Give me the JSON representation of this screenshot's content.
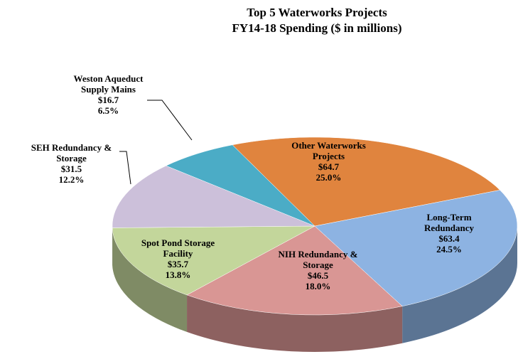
{
  "chart_data": {
    "type": "pie3d",
    "title": "Top 5 Waterworks Projects",
    "subtitle": "FY14-18 Spending ($ in millions)",
    "categories": [
      "Other Waterworks Projects",
      "Long-Term Redundancy",
      "NIH Redundancy & Storage",
      "Spot Pond Storage Facility",
      "SEH Redundancy & Storage",
      "Weston Aqueduct Supply Mains"
    ],
    "values": [
      64.7,
      63.4,
      46.5,
      35.7,
      31.5,
      16.7
    ],
    "value_labels": [
      "$64.7",
      "$63.4",
      "$46.5",
      "$35.7",
      "$31.5",
      "$16.7"
    ],
    "percents": [
      25.0,
      24.5,
      18.0,
      13.8,
      12.2,
      6.5
    ],
    "percent_labels": [
      "25.0%",
      "24.5%",
      "18.0%",
      "13.8%",
      "12.2%",
      "6.5%"
    ],
    "colors": [
      "#e0843e",
      "#8db3e2",
      "#d99694",
      "#c3d69b",
      "#ccc0da",
      "#4bacc6"
    ]
  }
}
